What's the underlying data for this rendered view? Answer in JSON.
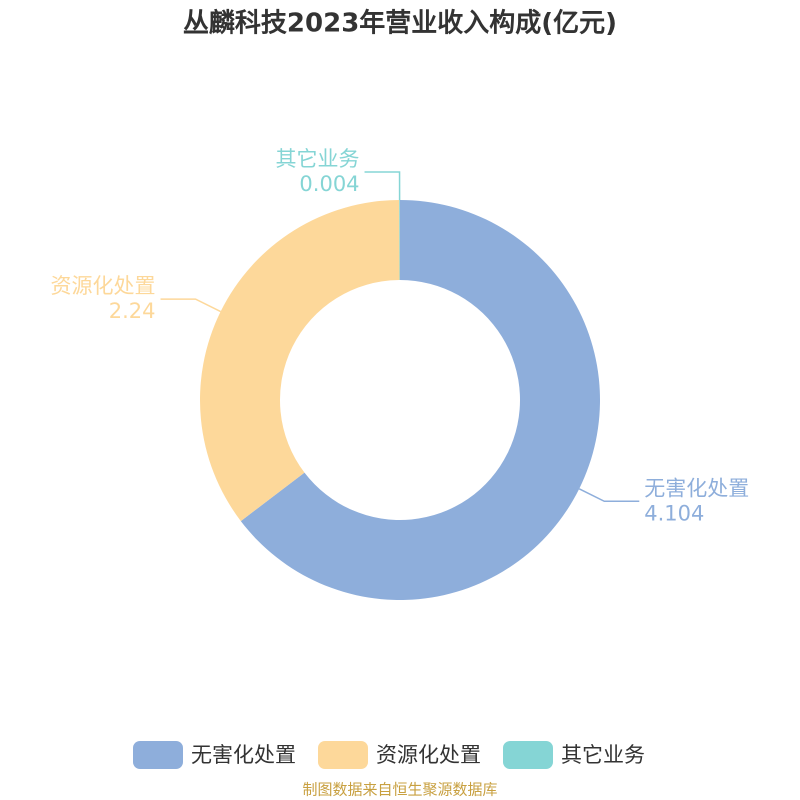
{
  "chart_data": {
    "type": "donut",
    "title": "丛麟科技2023年营业收入构成(亿元)",
    "categories": [
      "无害化处置",
      "资源化处置",
      "其它业务"
    ],
    "values": [
      4.104,
      2.24,
      0.004
    ],
    "colors": [
      "#8eaedb",
      "#fdd89a",
      "#85d5d5"
    ],
    "source": "制图数据来自恒生聚源数据库"
  }
}
